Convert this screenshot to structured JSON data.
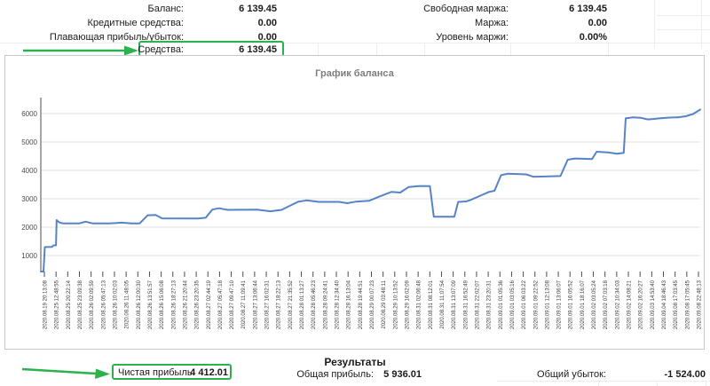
{
  "colors": {
    "accent_green": "#2bb24e",
    "line_blue": "#5584c6",
    "grid_gray": "#e2e2e2",
    "axis_gray": "#4b4b4b",
    "title_gray": "#7d7d7d"
  },
  "summary": {
    "left": [
      {
        "label": "Баланс:",
        "value": "6 139.45"
      },
      {
        "label": "Кредитные средства:",
        "value": "0.00"
      },
      {
        "label": "Плавающая прибыль/убыток:",
        "value": "0.00"
      },
      {
        "label": "Средства:",
        "value": "6 139.45",
        "highlighted": true
      }
    ],
    "right": [
      {
        "label": "Свободная маржа:",
        "value": "6 139.45"
      },
      {
        "label": "Маржа:",
        "value": "0.00"
      },
      {
        "label": "Уровень маржи:",
        "value": "0.00%"
      }
    ]
  },
  "results": {
    "title": "Результаты",
    "net_profit": {
      "label": "Чистая прибыль:",
      "value": "4 412.01",
      "highlighted": true
    },
    "gross_profit": {
      "label": "Общая прибыль:",
      "value": "5 936.01"
    },
    "gross_loss": {
      "label": "Общий убыток:",
      "value": "-1 524.00"
    }
  },
  "chart_data": {
    "type": "line",
    "title": "График баланса",
    "ylabel": "",
    "xlabel": "",
    "grid": true,
    "ylim": [
      437,
      6530
    ],
    "y_ticks": [
      1000,
      2000,
      3000,
      4000,
      5000,
      6000
    ],
    "final_value": 6139.45,
    "series": [
      {
        "name": "Баланс",
        "points": [
          [
            0.0,
            437
          ],
          [
            0.004,
            437
          ],
          [
            0.006,
            1300
          ],
          [
            0.017,
            1305
          ],
          [
            0.019,
            1360
          ],
          [
            0.023,
            1360
          ],
          [
            0.024,
            2250
          ],
          [
            0.028,
            2170
          ],
          [
            0.034,
            2130
          ],
          [
            0.058,
            2130
          ],
          [
            0.068,
            2195
          ],
          [
            0.078,
            2135
          ],
          [
            0.105,
            2130
          ],
          [
            0.122,
            2160
          ],
          [
            0.138,
            2130
          ],
          [
            0.15,
            2135
          ],
          [
            0.162,
            2420
          ],
          [
            0.174,
            2430
          ],
          [
            0.184,
            2310
          ],
          [
            0.238,
            2305
          ],
          [
            0.25,
            2330
          ],
          [
            0.26,
            2620
          ],
          [
            0.27,
            2665
          ],
          [
            0.283,
            2610
          ],
          [
            0.328,
            2615
          ],
          [
            0.348,
            2560
          ],
          [
            0.365,
            2610
          ],
          [
            0.39,
            2895
          ],
          [
            0.403,
            2945
          ],
          [
            0.422,
            2890
          ],
          [
            0.452,
            2890
          ],
          [
            0.465,
            2845
          ],
          [
            0.478,
            2900
          ],
          [
            0.498,
            2930
          ],
          [
            0.515,
            3090
          ],
          [
            0.532,
            3245
          ],
          [
            0.545,
            3220
          ],
          [
            0.558,
            3415
          ],
          [
            0.575,
            3450
          ],
          [
            0.59,
            3445
          ],
          [
            0.596,
            2370
          ],
          [
            0.627,
            2370
          ],
          [
            0.633,
            2890
          ],
          [
            0.645,
            2905
          ],
          [
            0.652,
            2960
          ],
          [
            0.665,
            3095
          ],
          [
            0.68,
            3245
          ],
          [
            0.688,
            3280
          ],
          [
            0.698,
            3830
          ],
          [
            0.708,
            3880
          ],
          [
            0.736,
            3860
          ],
          [
            0.747,
            3775
          ],
          [
            0.788,
            3800
          ],
          [
            0.799,
            4375
          ],
          [
            0.81,
            4420
          ],
          [
            0.836,
            4400
          ],
          [
            0.843,
            4655
          ],
          [
            0.86,
            4630
          ],
          [
            0.874,
            4585
          ],
          [
            0.884,
            4620
          ],
          [
            0.887,
            5830
          ],
          [
            0.898,
            5865
          ],
          [
            0.91,
            5850
          ],
          [
            0.921,
            5795
          ],
          [
            0.938,
            5830
          ],
          [
            0.953,
            5860
          ],
          [
            0.966,
            5870
          ],
          [
            0.978,
            5905
          ],
          [
            0.989,
            5985
          ],
          [
            1.0,
            6139.45
          ]
        ]
      }
    ],
    "x_labels": [
      "2020.08.19 20:13:08",
      "2020.08.25 12:48:55",
      "2020.08.25 20:22:14",
      "2020.08.25 23:09:38",
      "2020.08.26 02:09:59",
      "2020.08.26 05:47:13",
      "2020.08.26 10:02:03",
      "2020.08.26 11:48:05",
      "2020.08.26 12:00:30",
      "2020.08.26 13:51:57",
      "2020.08.26 15:06:08",
      "2020.08.26 18:27:13",
      "2020.08.26 21:20:44",
      "2020.08.26 23:20:35",
      "2020.08.27 02:44:19",
      "2020.08.27 05:47:18",
      "2020.08.27 09:47:10",
      "2020.08.27 11:09:41",
      "2020.08.27 13:06:44",
      "2020.08.27 16:02:31",
      "2020.08.27 18:22:13",
      "2020.08.27 21:35:52",
      "2020.08.28 01:13:27",
      "2020.08.28 05:46:23",
      "2020.08.28 09:24:41",
      "2020.08.28 12:34:40",
      "2020.08.28 16:13:04",
      "2020.08.28 19:44:51",
      "2020.08.29 00:07:23",
      "2020.08.29 03:48:11",
      "2020.08.29 10:13:52",
      "2020.08.29 16:02:09",
      "2020.08.31 02:06:48",
      "2020.08.31 08:12:01",
      "2020.08.31 11:07:54",
      "2020.08.31 13:07:09",
      "2020.08.31 16:52:49",
      "2020.08.31 22:02:07",
      "2020.08.31 23:20:31",
      "2020.09.01 01:05:36",
      "2020.09.01 03:05:16",
      "2020.09.01 06:03:22",
      "2020.09.01 09:22:52",
      "2020.09.01 12:13:08",
      "2020.09.01 13:06:07",
      "2020.09.01 16:05:52",
      "2020.09.01 18:16:07",
      "2020.09.02 03:05:24",
      "2020.09.02 07:03:18",
      "2020.09.02 10:34:03",
      "2020.09.02 14:08:21",
      "2020.09.02 16:20:27",
      "2020.09.03 14:53:40",
      "2020.09.04 18:46:43",
      "2020.09.08 17:03:45",
      "2020.09.08 17:05:45",
      "2020.09.08 22:48:13"
    ]
  }
}
